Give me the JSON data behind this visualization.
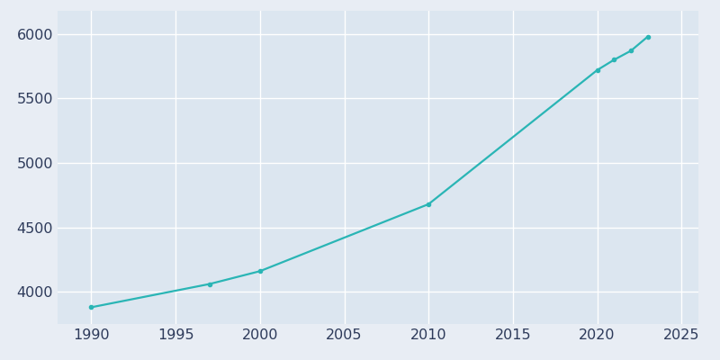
{
  "years": [
    1990,
    1997,
    2000,
    2010,
    2020,
    2021,
    2022,
    2023
  ],
  "population": [
    3880,
    4060,
    4160,
    4680,
    5720,
    5800,
    5870,
    5980
  ],
  "line_color": "#2ab5b5",
  "marker": "o",
  "marker_size": 3,
  "line_width": 1.6,
  "bg_color": "#e8edf4",
  "plot_bg_color": "#dce6f0",
  "grid_color": "#ffffff",
  "tick_color": "#2d3a5a",
  "xlim": [
    1988,
    2026
  ],
  "ylim": [
    3750,
    6180
  ],
  "xticks": [
    1990,
    1995,
    2000,
    2005,
    2010,
    2015,
    2020,
    2025
  ],
  "yticks": [
    4000,
    4500,
    5000,
    5500,
    6000
  ],
  "tick_fontsize": 11.5
}
